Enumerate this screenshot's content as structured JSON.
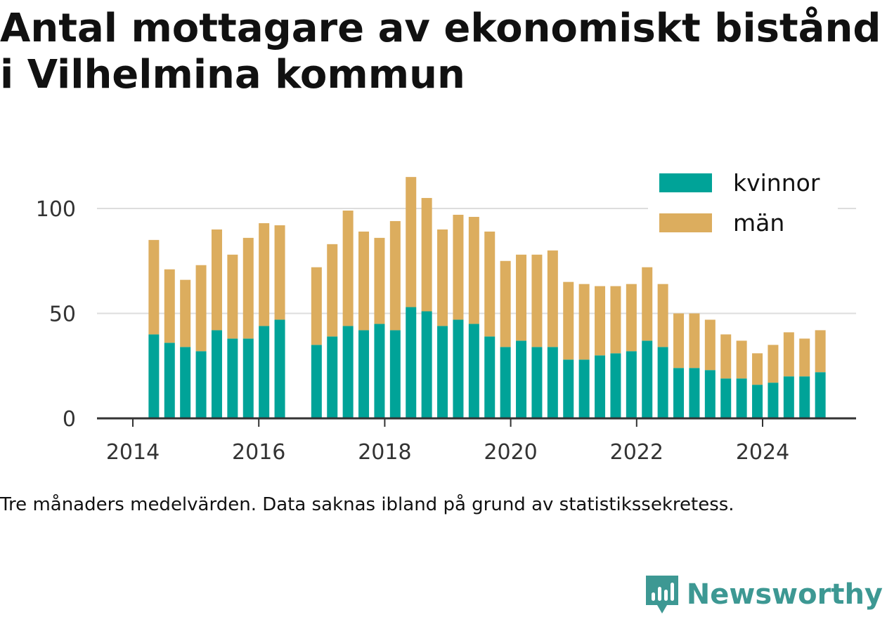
{
  "title": "Antal mottagare av ekonomiskt bistånd i Vilhelmina kommun",
  "note": "Tre månaders medelvärden. Data saknas ibland på grund av statistikssekretess.",
  "brand": {
    "name": "Newsworthy",
    "logo_icon": "newsworthy-bar-chart-bubble-icon"
  },
  "colors": {
    "kvinnor": "#00a398",
    "man": "#dcad5e",
    "grid": "#dddddd",
    "axis": "#333333",
    "brand": "#3d9893"
  },
  "chart_data": {
    "type": "bar",
    "stacked": true,
    "title": "",
    "xlabel": "",
    "ylabel": "",
    "ylim": [
      0,
      120
    ],
    "yticks": [
      0,
      50,
      100
    ],
    "xticks": [
      "2014",
      "2016",
      "2018",
      "2020",
      "2022",
      "2024"
    ],
    "grid": true,
    "legend_position": "top-right",
    "x": [
      "2014-05",
      "2014-08",
      "2014-11",
      "2015-02",
      "2015-05",
      "2015-08",
      "2015-11",
      "2016-02",
      "2016-05",
      "2016-12",
      "2017-03",
      "2017-06",
      "2017-09",
      "2017-12",
      "2018-03",
      "2018-06",
      "2018-09",
      "2018-12",
      "2019-03",
      "2019-06",
      "2019-09",
      "2019-12",
      "2020-03",
      "2020-06",
      "2020-09",
      "2020-12",
      "2021-03",
      "2021-06",
      "2021-09",
      "2021-12",
      "2022-03",
      "2022-06",
      "2022-09",
      "2022-12",
      "2023-03",
      "2023-06",
      "2023-09",
      "2023-12",
      "2024-03",
      "2024-06",
      "2024-09",
      "2024-12"
    ],
    "series": [
      {
        "name": "kvinnor",
        "color": "#00a398",
        "values": [
          40,
          36,
          34,
          32,
          42,
          38,
          38,
          44,
          47,
          35,
          39,
          44,
          42,
          45,
          42,
          53,
          51,
          44,
          47,
          45,
          39,
          34,
          37,
          34,
          34,
          28,
          28,
          30,
          31,
          32,
          37,
          34,
          24,
          24,
          23,
          19,
          19,
          16,
          17,
          20,
          20,
          22
        ]
      },
      {
        "name": "män",
        "color": "#dcad5e",
        "values": [
          45,
          35,
          32,
          41,
          48,
          40,
          48,
          49,
          45,
          37,
          44,
          55,
          47,
          41,
          52,
          62,
          54,
          46,
          50,
          51,
          50,
          41,
          41,
          44,
          46,
          37,
          36,
          33,
          32,
          32,
          35,
          30,
          26,
          26,
          24,
          21,
          18,
          15,
          18,
          21,
          18,
          20
        ]
      }
    ]
  }
}
